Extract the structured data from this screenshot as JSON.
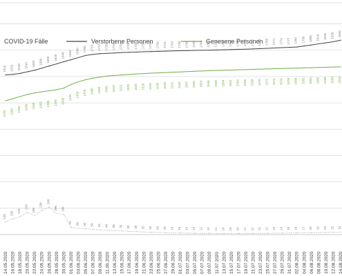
{
  "chart_data": {
    "type": "line",
    "title": "",
    "xlabel": "",
    "ylabel": "",
    "grid": true,
    "legend_position": "top",
    "x": [
      "14.05.2020",
      "16.05.2020",
      "18.05.2020",
      "20.05.2020",
      "22.05.2020",
      "24.05.2020",
      "26.05.2020",
      "28.05.2020",
      "30.05.2020",
      "01.06.2020",
      "03.06.2020",
      "05.06.2020",
      "07.06.2020",
      "09.06.2020",
      "11.06.2020",
      "13.06.2020",
      "15.06.2020",
      "17.06.2020",
      "19.06.2020",
      "21.06.2020",
      "23.06.2020",
      "25.06.2020",
      "27.06.2020",
      "29.06.2020",
      "01.07.2020",
      "03.07.2020",
      "05.07.2020",
      "07.07.2020",
      "09.07.2020",
      "11.07.2020",
      "13.07.2020",
      "15.07.2020",
      "17.07.2020",
      "19.07.2020",
      "21.07.2020",
      "23.07.2020",
      "25.07.2020",
      "27.07.2020",
      "29.07.2020",
      "31.07.2020",
      "02.08.2020",
      "04.08.2020",
      "06.08.2020",
      "08.08.2020",
      "10.08.2020",
      "12.08.2020",
      "14.08.2020"
    ],
    "series": [
      {
        "name": "COVID-19 Fälle",
        "color": "#b4b4b4",
        "values": [
          120,
          150,
          170,
          210,
          180,
          230,
          260,
          200,
          190,
          70,
          60,
          55,
          50,
          45,
          40,
          38,
          35,
          30,
          28,
          25,
          22,
          20,
          18,
          16,
          15,
          14,
          13,
          12,
          12,
          11,
          10,
          10,
          10,
          11,
          11,
          12,
          12,
          13,
          14,
          15,
          16,
          17,
          18,
          19,
          20,
          22,
          24
        ]
      },
      {
        "name": "Verstorbene Personen",
        "color": "#404040",
        "values": [
          1515,
          1520,
          1530,
          1545,
          1560,
          1580,
          1600,
          1620,
          1640,
          1660,
          1680,
          1700,
          1710,
          1717,
          1720,
          1724,
          1728,
          1730,
          1732,
          1735,
          1737,
          1739,
          1741,
          1743,
          1745,
          1746,
          1748,
          1749,
          1750,
          1752,
          1754,
          1756,
          1758,
          1760,
          1762,
          1765,
          1768,
          1771,
          1774,
          1777,
          1780,
          1790,
          1800,
          1810,
          1820,
          1830,
          1845
        ]
      },
      {
        "name": "Genesene Personen",
        "color": "#70ad47",
        "values": [
          1270,
          1290,
          1310,
          1330,
          1345,
          1355,
          1365,
          1375,
          1390,
          1425,
          1450,
          1470,
          1485,
          1495,
          1505,
          1510,
          1515,
          1520,
          1525,
          1528,
          1532,
          1535,
          1538,
          1541,
          1544,
          1547,
          1550,
          1553,
          1556,
          1558,
          1560,
          1562,
          1564,
          1566,
          1568,
          1570,
          1572,
          1574,
          1576,
          1578,
          1580,
          1582,
          1584,
          1586,
          1588,
          1590,
          1592
        ]
      }
    ],
    "ylim": [
      0,
      2200
    ]
  }
}
